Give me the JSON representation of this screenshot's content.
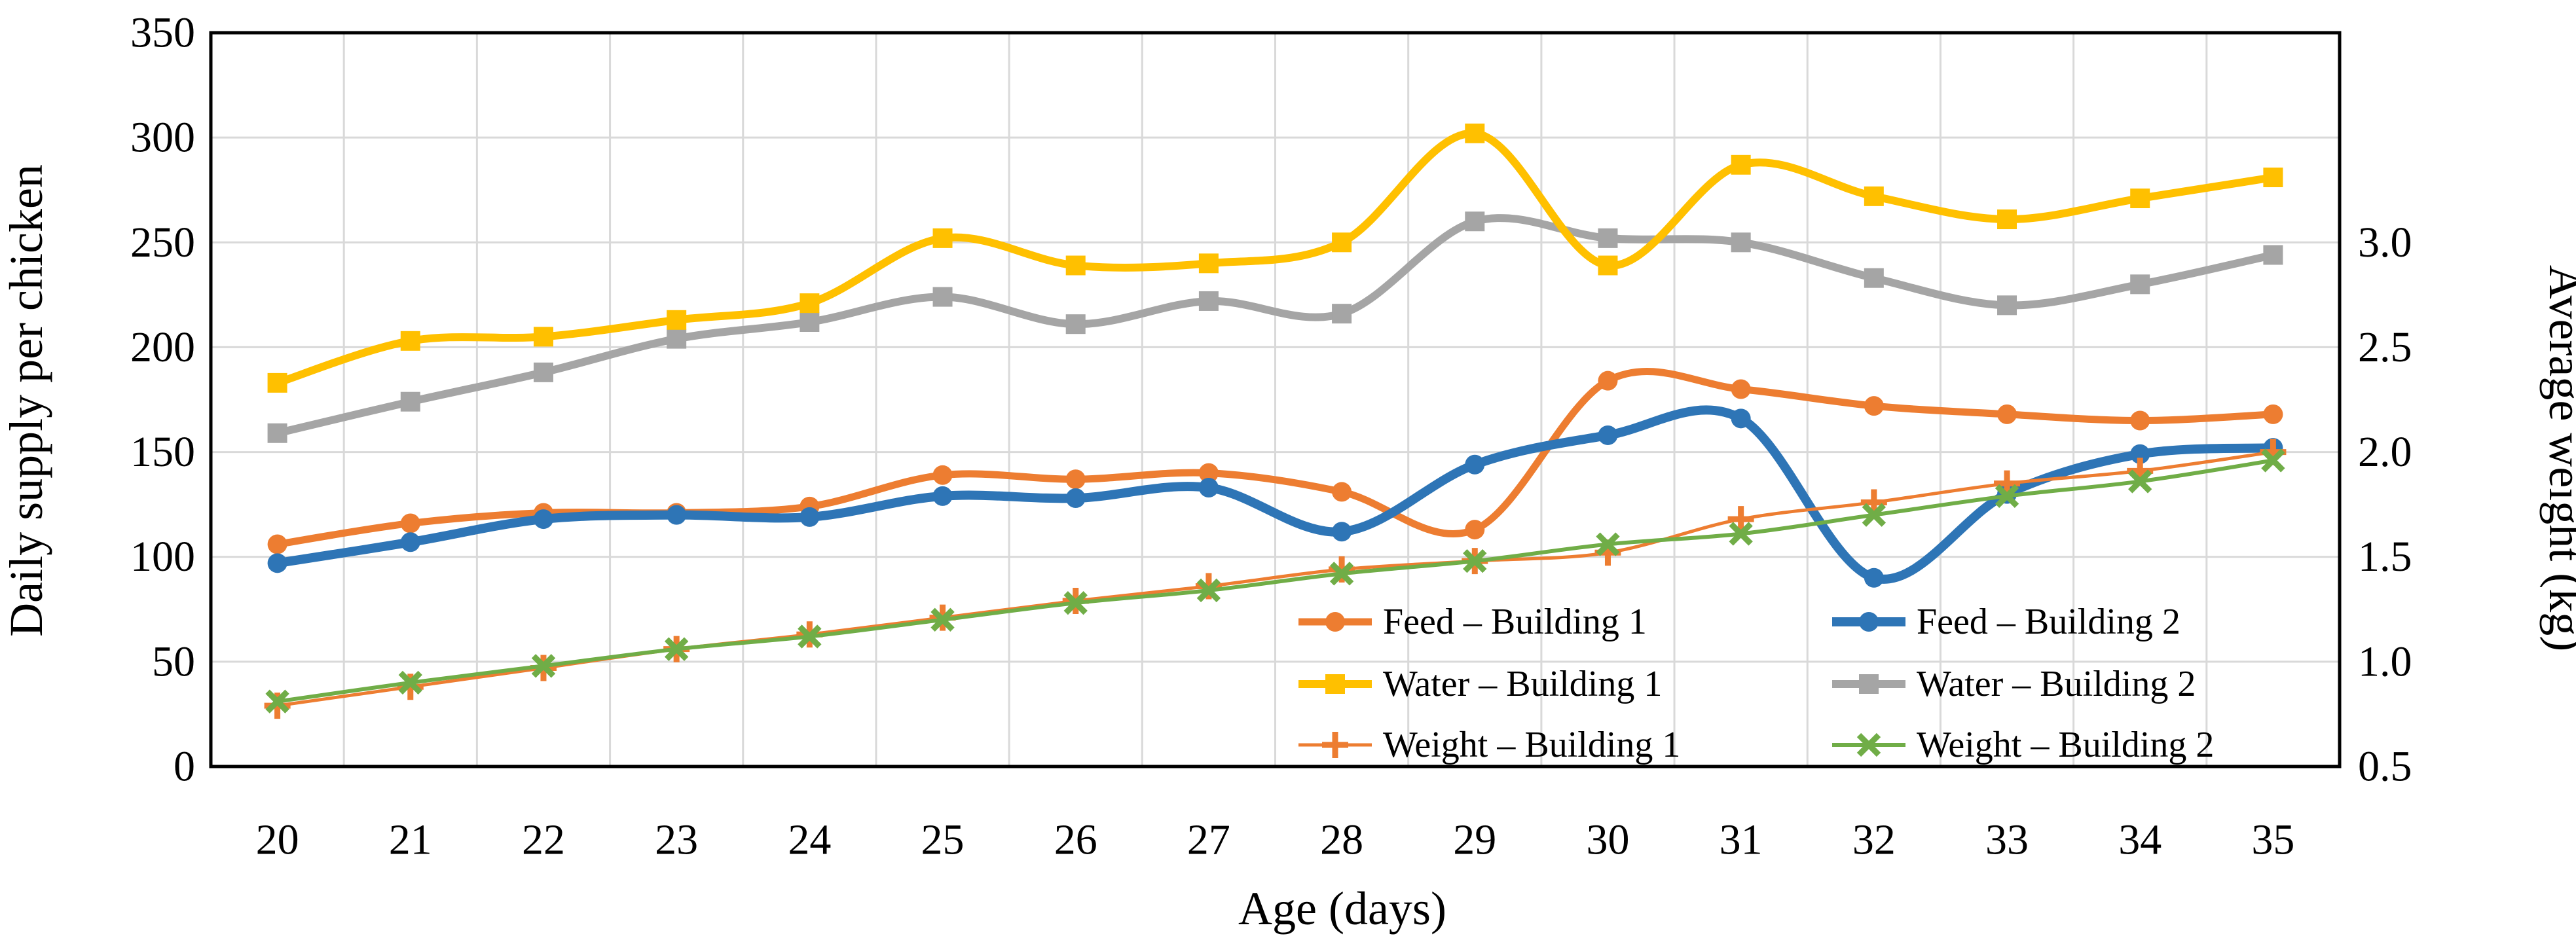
{
  "page": {
    "background": "#FFFFFF"
  },
  "chart_data": {
    "type": "line",
    "title": "",
    "xlabel": "Age (days)",
    "ylabel_left": "Daily supply per chicken",
    "ylabel_right": "Average weight (kg)",
    "x_categories": [
      "20",
      "21",
      "22",
      "23",
      "24",
      "25",
      "26",
      "27",
      "28",
      "29",
      "30",
      "31",
      "32",
      "33",
      "34",
      "35"
    ],
    "y_left_axis": {
      "min": 0,
      "max": 350,
      "tick_step": 50,
      "tick_labels": [
        "0",
        "50",
        "100",
        "150",
        "200",
        "250",
        "300",
        "350"
      ]
    },
    "y_right_axis": {
      "unit": "kg",
      "tick_labels": [
        "0.5",
        "1.0",
        "1.5",
        "2.0",
        "2.5",
        "3.0"
      ],
      "aligned_left_values": [
        0,
        50,
        100,
        150,
        200,
        250
      ]
    },
    "grid": {
      "color": "#D9D9D9",
      "frame_color": "#000000",
      "grid_on": true
    },
    "legend_position": "inside bottom-right, 2 columns x 3 rows",
    "legend_order": [
      [
        0,
        1
      ],
      [
        2,
        3
      ],
      [
        4,
        5
      ]
    ],
    "series": [
      {
        "name": "Feed – Building 1",
        "axis": "left",
        "color": "#ED7D31",
        "marker": "circle",
        "line_width": 11,
        "smooth": true,
        "values": [
          106,
          116,
          121,
          121,
          124,
          139,
          137,
          140,
          131,
          113,
          184,
          180,
          172,
          168,
          165,
          168
        ]
      },
      {
        "name": "Feed – Building 2",
        "axis": "left",
        "color": "#2E75B6",
        "marker": "circle",
        "line_width": 14,
        "smooth": true,
        "values": [
          97,
          107,
          118,
          120,
          119,
          129,
          128,
          133,
          112,
          144,
          158,
          166,
          90,
          130,
          149,
          152
        ]
      },
      {
        "name": "Water – Building 1",
        "axis": "left",
        "color": "#FFC000",
        "marker": "square",
        "line_width": 12,
        "smooth": true,
        "values": [
          183,
          203,
          205,
          213,
          221,
          252,
          239,
          240,
          250,
          302,
          239,
          287,
          272,
          261,
          271,
          281
        ]
      },
      {
        "name": "Water – Building 2",
        "axis": "left",
        "color": "#A5A5A5",
        "marker": "square",
        "line_width": 12,
        "smooth": true,
        "values": [
          159,
          174,
          188,
          204,
          212,
          224,
          211,
          222,
          216,
          260,
          252,
          250,
          233,
          220,
          230,
          244
        ]
      },
      {
        "name": "Weight – Building 1",
        "axis": "right",
        "color": "#ED7D31",
        "marker": "plus",
        "line_width": 5,
        "smooth": true,
        "values": [
          0.79,
          0.88,
          0.97,
          1.06,
          1.13,
          1.21,
          1.29,
          1.36,
          1.44,
          1.48,
          1.52,
          1.68,
          1.76,
          1.85,
          1.91,
          2.0
        ]
      },
      {
        "name": "Weight – Building 2",
        "axis": "right",
        "color": "#70AD47",
        "marker": "x",
        "line_width": 6,
        "smooth": true,
        "values": [
          0.81,
          0.9,
          0.98,
          1.06,
          1.12,
          1.2,
          1.28,
          1.34,
          1.42,
          1.48,
          1.56,
          1.61,
          1.7,
          1.79,
          1.86,
          1.96
        ]
      }
    ]
  }
}
